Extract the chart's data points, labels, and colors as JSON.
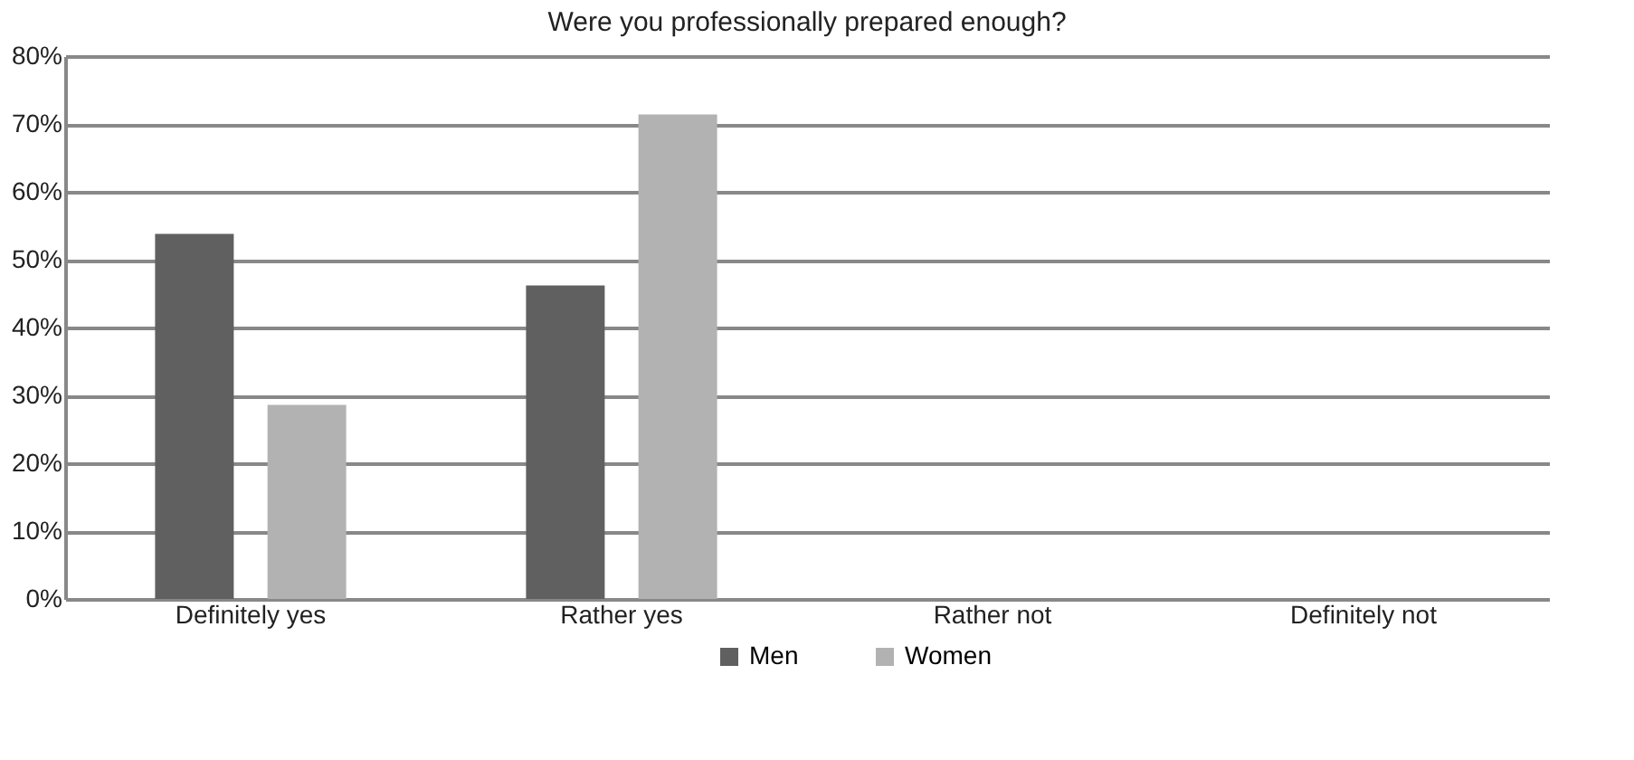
{
  "chart_data": {
    "type": "bar",
    "title": "Were you professionally prepared enough?",
    "categories": [
      "Definitely yes",
      "Rather yes",
      "Rather not",
      "Definitely not"
    ],
    "series": [
      {
        "name": "Men",
        "color": "#606060",
        "values": [
          53.8,
          46.2,
          0,
          0
        ]
      },
      {
        "name": "Women",
        "color": "#b2b2b2",
        "values": [
          28.6,
          71.4,
          0,
          0
        ]
      }
    ],
    "ylim": [
      0,
      80
    ],
    "yticks": [
      {
        "value": 0,
        "label": "0%"
      },
      {
        "value": 10,
        "label": "10%"
      },
      {
        "value": 20,
        "label": "20%"
      },
      {
        "value": 30,
        "label": "30%"
      },
      {
        "value": 40,
        "label": "40%"
      },
      {
        "value": 50,
        "label": "50%"
      },
      {
        "value": 60,
        "label": "60%"
      },
      {
        "value": 70,
        "label": "70%"
      },
      {
        "value": 80,
        "label": "80%"
      }
    ],
    "grid": "y",
    "legend": "bottom"
  }
}
